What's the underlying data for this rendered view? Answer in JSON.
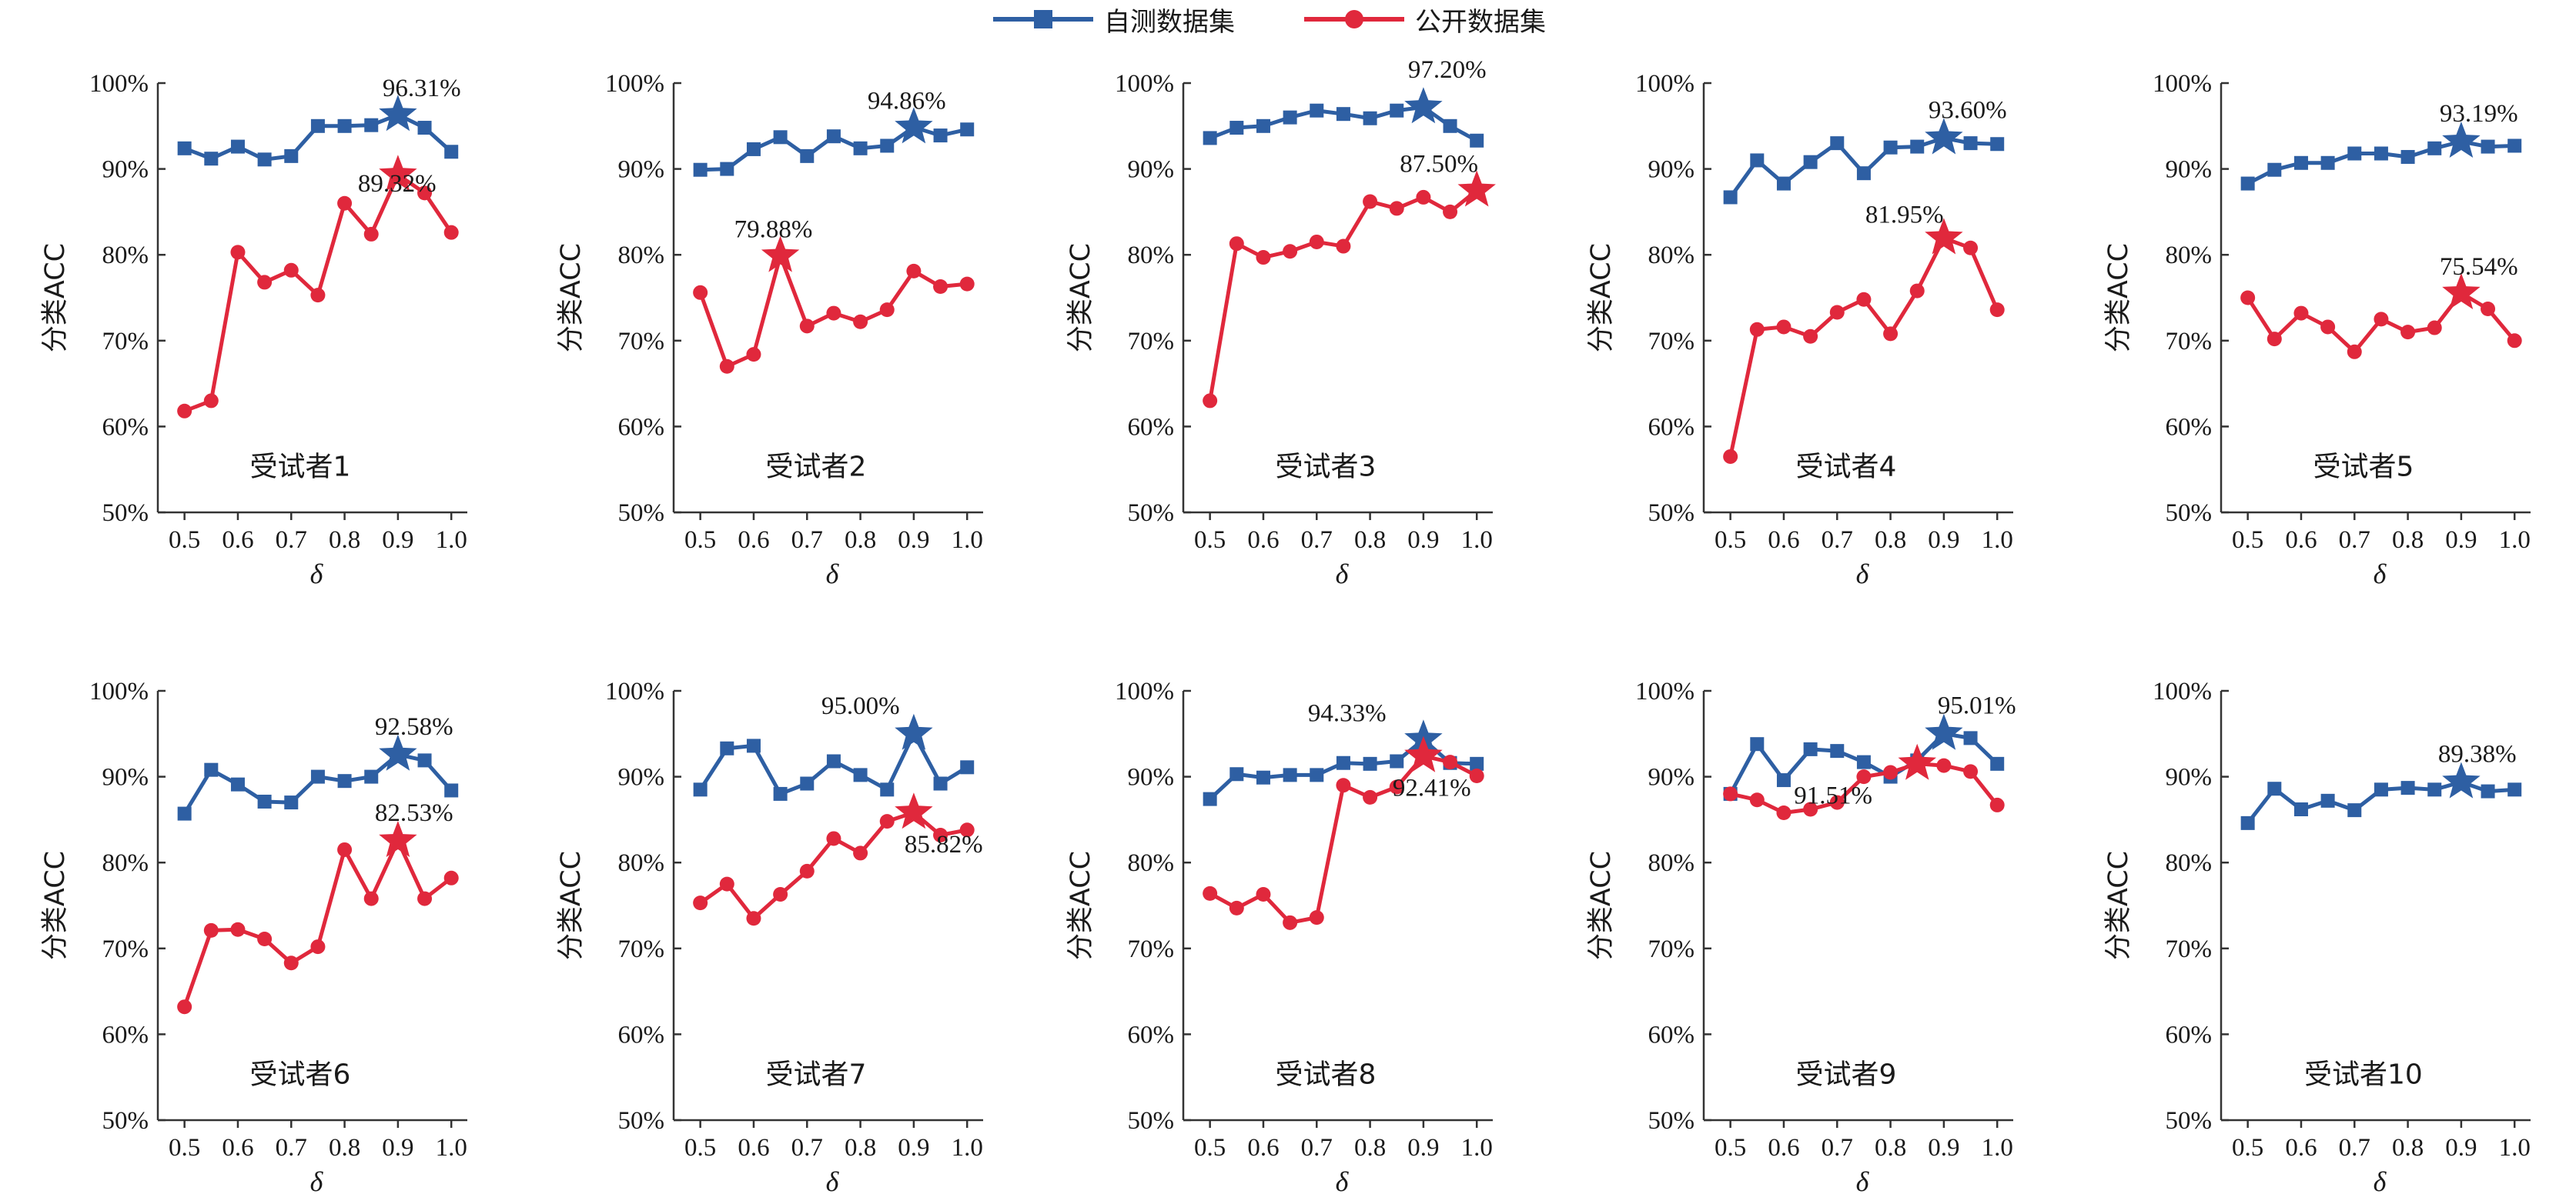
{
  "colors": {
    "self": "#2e5fa3",
    "public": "#e0283c",
    "axis": "#333333"
  },
  "legend": {
    "self_label": "自测数据集",
    "public_label": "公开数据集",
    "self_marker": "square",
    "public_marker": "circle"
  },
  "chart_data": [
    {
      "type": "line",
      "title": "受试者1",
      "xlabel": "δ",
      "ylabel": "分类ACC",
      "ylim": [
        50,
        100
      ],
      "x": [
        0.5,
        0.55,
        0.6,
        0.65,
        0.7,
        0.75,
        0.8,
        0.85,
        0.9,
        0.95,
        1.0
      ],
      "series": [
        {
          "name": "自测数据集",
          "values": [
            92.4,
            91.2,
            92.6,
            91.1,
            91.5,
            95.0,
            95.0,
            95.1,
            96.31,
            94.8,
            92.0
          ],
          "best_label": "96.31%",
          "best_index": 8
        },
        {
          "name": "公开数据集",
          "values": [
            61.8,
            63.0,
            80.3,
            76.8,
            78.2,
            75.3,
            86.0,
            82.4,
            89.32,
            87.2,
            82.6
          ],
          "best_label": "89.32%",
          "best_index": 8
        }
      ]
    },
    {
      "type": "line",
      "title": "受试者2",
      "xlabel": "δ",
      "ylabel": "分类ACC",
      "ylim": [
        50,
        100
      ],
      "x": [
        0.5,
        0.55,
        0.6,
        0.65,
        0.7,
        0.75,
        0.8,
        0.85,
        0.9,
        0.95,
        1.0
      ],
      "series": [
        {
          "name": "自测数据集",
          "values": [
            89.9,
            90.0,
            92.3,
            93.7,
            91.5,
            93.8,
            92.4,
            92.7,
            94.86,
            93.9,
            94.6
          ],
          "best_label": "94.86%",
          "best_index": 8
        },
        {
          "name": "公开数据集",
          "values": [
            75.6,
            67.0,
            68.4,
            79.88,
            71.7,
            73.2,
            72.2,
            73.6,
            78.1,
            76.3,
            76.6
          ],
          "best_label": "79.88%",
          "best_index": 3
        }
      ]
    },
    {
      "type": "line",
      "title": "受试者3",
      "xlabel": "δ",
      "ylabel": "分类ACC",
      "ylim": [
        50,
        100
      ],
      "x": [
        0.5,
        0.55,
        0.6,
        0.65,
        0.7,
        0.75,
        0.8,
        0.85,
        0.9,
        0.95,
        1.0
      ],
      "series": [
        {
          "name": "自测数据集",
          "values": [
            93.6,
            94.8,
            95.0,
            96.0,
            96.8,
            96.4,
            95.9,
            96.8,
            97.2,
            95.0,
            93.3
          ],
          "best_label": "97.20%",
          "best_index": 8
        },
        {
          "name": "公开数据集",
          "values": [
            63.0,
            81.3,
            79.7,
            80.4,
            81.5,
            81.0,
            86.2,
            85.4,
            86.7,
            85.0,
            87.5
          ],
          "best_label": "87.50%",
          "best_index": 10
        }
      ]
    },
    {
      "type": "line",
      "title": "受试者4",
      "xlabel": "δ",
      "ylabel": "分类ACC",
      "ylim": [
        50,
        100
      ],
      "x": [
        0.5,
        0.55,
        0.6,
        0.65,
        0.7,
        0.75,
        0.8,
        0.85,
        0.9,
        0.95,
        1.0
      ],
      "series": [
        {
          "name": "自测数据集",
          "values": [
            86.7,
            91.0,
            88.3,
            90.8,
            93.0,
            89.5,
            92.5,
            92.6,
            93.6,
            93.0,
            92.9
          ],
          "best_label": "93.60%",
          "best_index": 8
        },
        {
          "name": "公开数据集",
          "values": [
            56.5,
            71.3,
            71.6,
            70.5,
            73.3,
            74.8,
            70.8,
            75.8,
            81.95,
            80.8,
            73.6
          ],
          "best_label": "81.95%",
          "best_index": 8
        }
      ]
    },
    {
      "type": "line",
      "title": "受试者5",
      "xlabel": "δ",
      "ylabel": "分类ACC",
      "ylim": [
        50,
        100
      ],
      "x": [
        0.5,
        0.55,
        0.6,
        0.65,
        0.7,
        0.75,
        0.8,
        0.85,
        0.9,
        0.95,
        1.0
      ],
      "series": [
        {
          "name": "自测数据集",
          "values": [
            88.3,
            89.9,
            90.7,
            90.7,
            91.8,
            91.8,
            91.4,
            92.4,
            93.19,
            92.6,
            92.7
          ],
          "best_label": "93.19%",
          "best_index": 8
        },
        {
          "name": "公开数据集",
          "values": [
            75.0,
            70.2,
            73.2,
            71.6,
            68.7,
            72.5,
            71.0,
            71.5,
            75.54,
            73.7,
            70.0
          ],
          "best_label": "75.54%",
          "best_index": 8
        }
      ]
    },
    {
      "type": "line",
      "title": "受试者6",
      "xlabel": "δ",
      "ylabel": "分类ACC",
      "ylim": [
        50,
        100
      ],
      "x": [
        0.5,
        0.55,
        0.6,
        0.65,
        0.7,
        0.75,
        0.8,
        0.85,
        0.9,
        0.95,
        1.0
      ],
      "series": [
        {
          "name": "自测数据集",
          "values": [
            85.7,
            90.8,
            89.1,
            87.1,
            87.0,
            90.0,
            89.5,
            90.0,
            92.58,
            91.9,
            88.4
          ],
          "best_label": "92.58%",
          "best_index": 8
        },
        {
          "name": "公开数据集",
          "values": [
            63.2,
            72.1,
            72.2,
            71.1,
            68.3,
            70.2,
            81.5,
            75.8,
            82.53,
            75.8,
            78.2
          ],
          "best_label": "82.53%",
          "best_index": 8
        }
      ]
    },
    {
      "type": "line",
      "title": "受试者7",
      "xlabel": "δ",
      "ylabel": "分类ACC",
      "ylim": [
        50,
        100
      ],
      "x": [
        0.5,
        0.55,
        0.6,
        0.65,
        0.7,
        0.75,
        0.8,
        0.85,
        0.9,
        0.95,
        1.0
      ],
      "series": [
        {
          "name": "自测数据集",
          "values": [
            88.5,
            93.3,
            93.6,
            88.0,
            89.2,
            91.8,
            90.2,
            88.5,
            95.0,
            89.2,
            91.1
          ],
          "best_label": "95.00%",
          "best_index": 8
        },
        {
          "name": "公开数据集",
          "values": [
            75.3,
            77.5,
            73.5,
            76.3,
            79.0,
            82.8,
            81.1,
            84.8,
            85.82,
            83.2,
            83.8
          ],
          "best_label": "85.82%",
          "best_index": 8
        }
      ]
    },
    {
      "type": "line",
      "title": "受试者8",
      "xlabel": "δ",
      "ylabel": "分类ACC",
      "ylim": [
        50,
        100
      ],
      "x": [
        0.5,
        0.55,
        0.6,
        0.65,
        0.7,
        0.75,
        0.8,
        0.85,
        0.9,
        0.95,
        1.0
      ],
      "series": [
        {
          "name": "自测数据集",
          "values": [
            87.4,
            90.3,
            89.9,
            90.2,
            90.2,
            91.6,
            91.5,
            91.8,
            94.33,
            91.6,
            91.5
          ],
          "best_label": "94.33%",
          "best_index": 8
        },
        {
          "name": "公开数据集",
          "values": [
            76.4,
            74.7,
            76.3,
            73.0,
            73.6,
            89.0,
            87.6,
            88.8,
            92.41,
            91.7,
            90.1
          ],
          "best_label": "92.41%",
          "best_index": 8
        }
      ]
    },
    {
      "type": "line",
      "title": "受试者9",
      "xlabel": "δ",
      "ylabel": "分类ACC",
      "ylim": [
        50,
        100
      ],
      "x": [
        0.5,
        0.55,
        0.6,
        0.65,
        0.7,
        0.75,
        0.8,
        0.85,
        0.9,
        0.95,
        1.0
      ],
      "series": [
        {
          "name": "自测数据集",
          "values": [
            88.0,
            93.8,
            89.6,
            93.2,
            93.0,
            91.7,
            90.0,
            91.9,
            95.01,
            94.5,
            91.5
          ],
          "best_label": "95.01%",
          "best_index": 8
        },
        {
          "name": "公开数据集",
          "values": [
            88.0,
            87.3,
            85.8,
            86.2,
            87.0,
            90.0,
            90.5,
            91.51,
            91.3,
            90.6,
            86.7
          ],
          "best_label": "91.51%",
          "best_index": 7
        }
      ]
    },
    {
      "type": "line",
      "title": "受试者10",
      "xlabel": "δ",
      "ylabel": "分类ACC",
      "ylim": [
        50,
        100
      ],
      "x": [
        0.5,
        0.55,
        0.6,
        0.65,
        0.7,
        0.75,
        0.8,
        0.85,
        0.9,
        0.95,
        1.0
      ],
      "series": [
        {
          "name": "自测数据集",
          "values": [
            84.6,
            88.6,
            86.2,
            87.2,
            86.1,
            88.5,
            88.7,
            88.5,
            89.38,
            88.3,
            88.5
          ],
          "best_label": "89.38%",
          "best_index": 8
        }
      ]
    }
  ]
}
